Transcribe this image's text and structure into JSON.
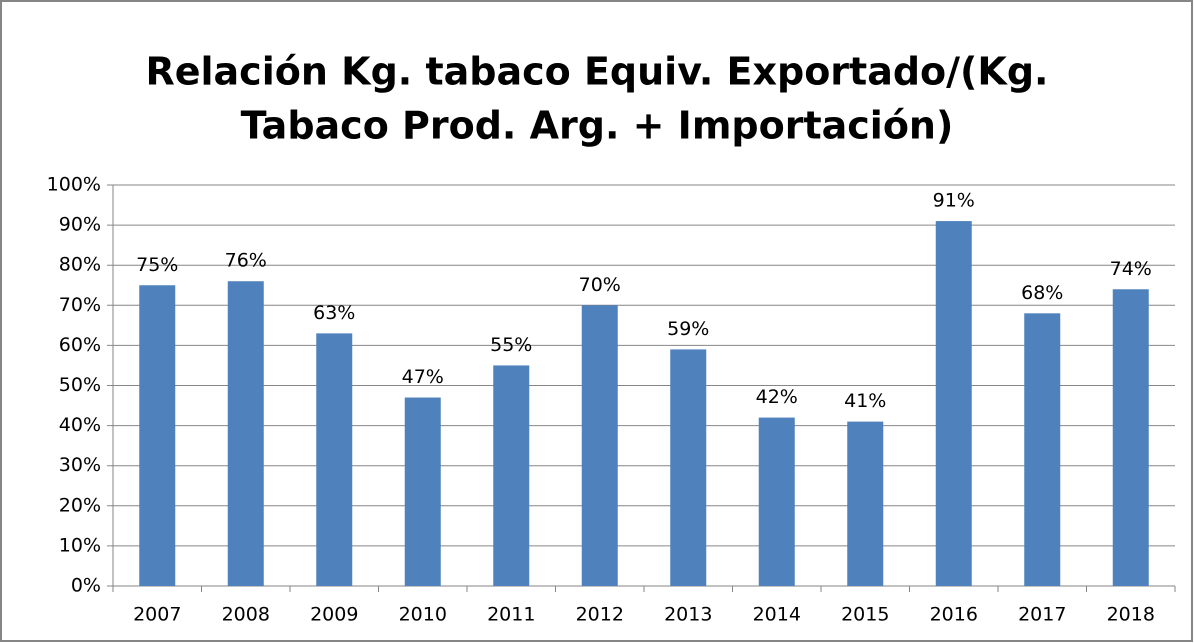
{
  "chart_data": {
    "type": "bar",
    "title": [
      "Relación Kg. tabaco Equiv. Exportado/(Kg.",
      "Tabaco Prod. Arg. + Importación)"
    ],
    "categories": [
      "2007",
      "2008",
      "2009",
      "2010",
      "2011",
      "2012",
      "2013",
      "2014",
      "2015",
      "2016",
      "2017",
      "2018"
    ],
    "values": [
      75,
      76,
      63,
      47,
      55,
      70,
      59,
      42,
      41,
      91,
      68,
      74
    ],
    "value_labels": [
      "75%",
      "76%",
      "63%",
      "47%",
      "55%",
      "70%",
      "59%",
      "42%",
      "41%",
      "91%",
      "68%",
      "74%"
    ],
    "color": "#4f81bd",
    "ylim": [
      0,
      100
    ],
    "yticks": [
      {
        "value": 0,
        "label": "0%"
      },
      {
        "value": 10,
        "label": "10%"
      },
      {
        "value": 20,
        "label": "20%"
      },
      {
        "value": 30,
        "label": "30%"
      },
      {
        "value": 40,
        "label": "40%"
      },
      {
        "value": 50,
        "label": "50%"
      },
      {
        "value": 60,
        "label": "60%"
      },
      {
        "value": 70,
        "label": "70%"
      },
      {
        "value": 80,
        "label": "80%"
      },
      {
        "value": 90,
        "label": "90%"
      },
      {
        "value": 100,
        "label": "100%"
      }
    ],
    "grid": true
  }
}
